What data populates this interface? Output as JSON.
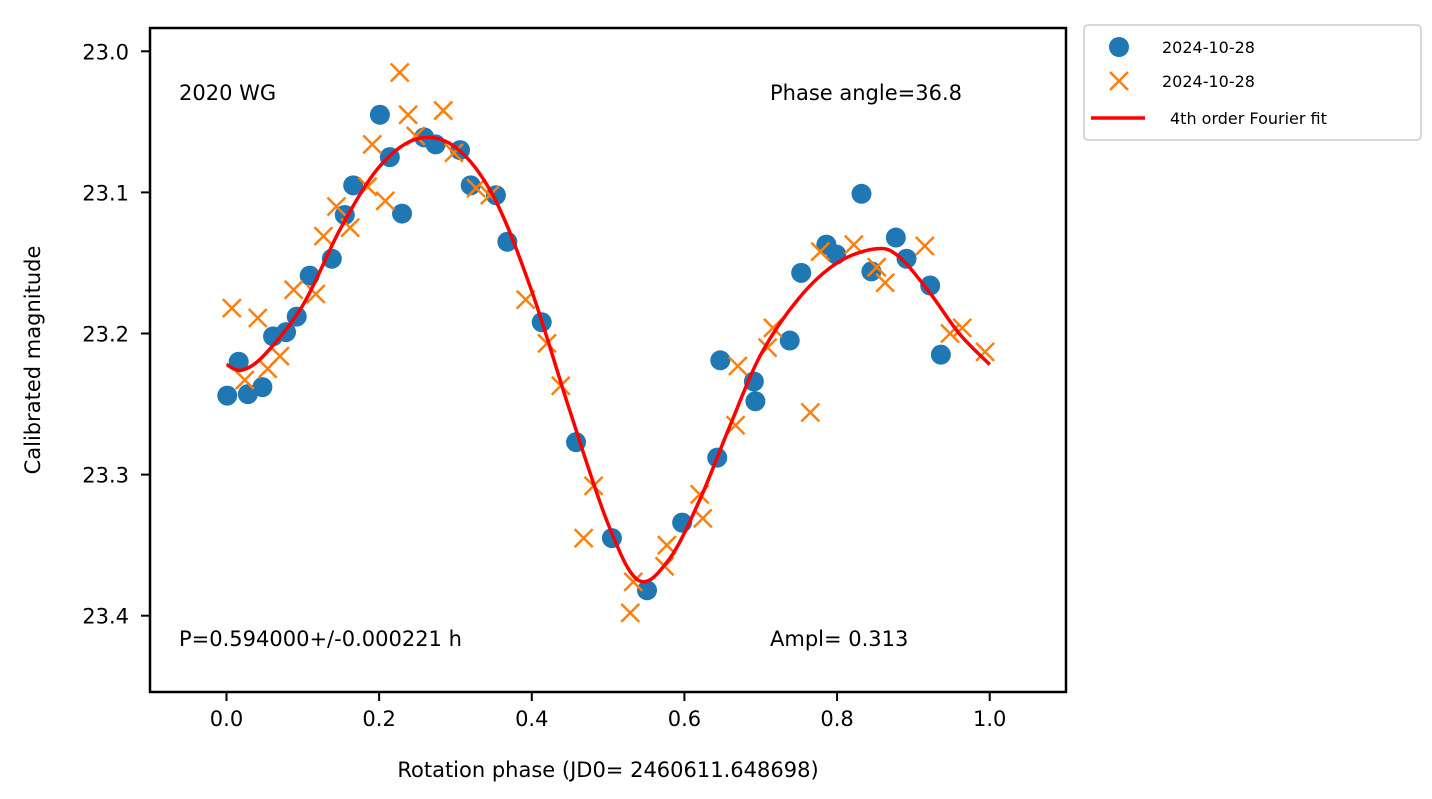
{
  "chart_data": {
    "type": "scatter",
    "xlabel": "Rotation phase (JD0= 2460611.648698)",
    "ylabel": "Calibrated magnitude",
    "xlim": [
      -0.1,
      1.1
    ],
    "ylim": [
      23.455,
      22.98
    ],
    "y_inverted": true,
    "grid": false,
    "x_ticks": [
      "0.0",
      "0.2",
      "0.4",
      "0.6",
      "0.8",
      "1.0"
    ],
    "x_tick_values": [
      0.0,
      0.2,
      0.4,
      0.6,
      0.8,
      1.0
    ],
    "y_ticks": [
      "23.0",
      "23.1",
      "23.2",
      "23.3",
      "23.4"
    ],
    "y_tick_values": [
      23.0,
      23.1,
      23.2,
      23.3,
      23.4
    ],
    "annotations": {
      "object": "2020 WG",
      "phase_angle": "Phase angle=36.8",
      "period": "P=0.594000+/-0.000221 h",
      "amplitude": "Ampl=  0.313"
    },
    "legend_position": "outside-top-right",
    "series": [
      {
        "name": "2024-10-28",
        "marker": "circle",
        "color": "#1f77b4",
        "x": [
          0.001,
          0.016,
          0.028,
          0.047,
          0.061,
          0.078,
          0.092,
          0.109,
          0.138,
          0.155,
          0.166,
          0.201,
          0.214,
          0.23,
          0.259,
          0.274,
          0.306,
          0.32,
          0.353,
          0.368,
          0.413,
          0.458,
          0.505,
          0.551,
          0.597,
          0.643,
          0.647,
          0.691,
          0.693,
          0.738,
          0.753,
          0.786,
          0.799,
          0.832,
          0.845,
          0.877,
          0.891,
          0.922,
          0.936
        ],
        "y": [
          23.244,
          23.22,
          23.243,
          23.238,
          23.202,
          23.199,
          23.188,
          23.159,
          23.147,
          23.116,
          23.095,
          23.045,
          23.075,
          23.115,
          23.061,
          23.066,
          23.07,
          23.095,
          23.102,
          23.135,
          23.192,
          23.277,
          23.345,
          23.382,
          23.334,
          23.288,
          23.219,
          23.234,
          23.248,
          23.205,
          23.157,
          23.137,
          23.144,
          23.101,
          23.156,
          23.132,
          23.147,
          23.166,
          23.215
        ]
      },
      {
        "name": "2024-10-28",
        "marker": "x",
        "color": "#ff7f0e",
        "x": [
          0.007,
          0.024,
          0.041,
          0.054,
          0.07,
          0.088,
          0.117,
          0.127,
          0.144,
          0.162,
          0.185,
          0.191,
          0.208,
          0.227,
          0.238,
          0.248,
          0.284,
          0.298,
          0.327,
          0.345,
          0.392,
          0.42,
          0.438,
          0.468,
          0.481,
          0.529,
          0.533,
          0.574,
          0.577,
          0.62,
          0.624,
          0.667,
          0.67,
          0.709,
          0.716,
          0.765,
          0.778,
          0.822,
          0.852,
          0.863,
          0.915,
          0.948,
          0.964,
          0.994
        ],
        "y": [
          23.182,
          23.233,
          23.189,
          23.225,
          23.216,
          23.169,
          23.172,
          23.131,
          23.11,
          23.125,
          23.096,
          23.066,
          23.106,
          23.015,
          23.045,
          23.06,
          23.042,
          23.072,
          23.097,
          23.102,
          23.176,
          23.207,
          23.237,
          23.345,
          23.308,
          23.398,
          23.376,
          23.365,
          23.35,
          23.314,
          23.331,
          23.265,
          23.223,
          23.21,
          23.196,
          23.256,
          23.142,
          23.137,
          23.153,
          23.164,
          23.138,
          23.2,
          23.196,
          23.213
        ]
      },
      {
        "name": "4th order Fourier fit",
        "marker": "line",
        "color": "#ff0000",
        "x": [
          0.0,
          0.02,
          0.05,
          0.1,
          0.15,
          0.2,
          0.25,
          0.3,
          0.35,
          0.4,
          0.45,
          0.5,
          0.54,
          0.58,
          0.62,
          0.66,
          0.7,
          0.75,
          0.8,
          0.85,
          0.88,
          0.92,
          0.96,
          1.0
        ],
        "y": [
          23.222,
          23.226,
          23.215,
          23.18,
          23.125,
          23.082,
          23.062,
          23.068,
          23.103,
          23.17,
          23.255,
          23.335,
          23.375,
          23.36,
          23.318,
          23.265,
          23.215,
          23.175,
          23.15,
          23.14,
          23.145,
          23.17,
          23.2,
          23.222
        ]
      }
    ]
  }
}
